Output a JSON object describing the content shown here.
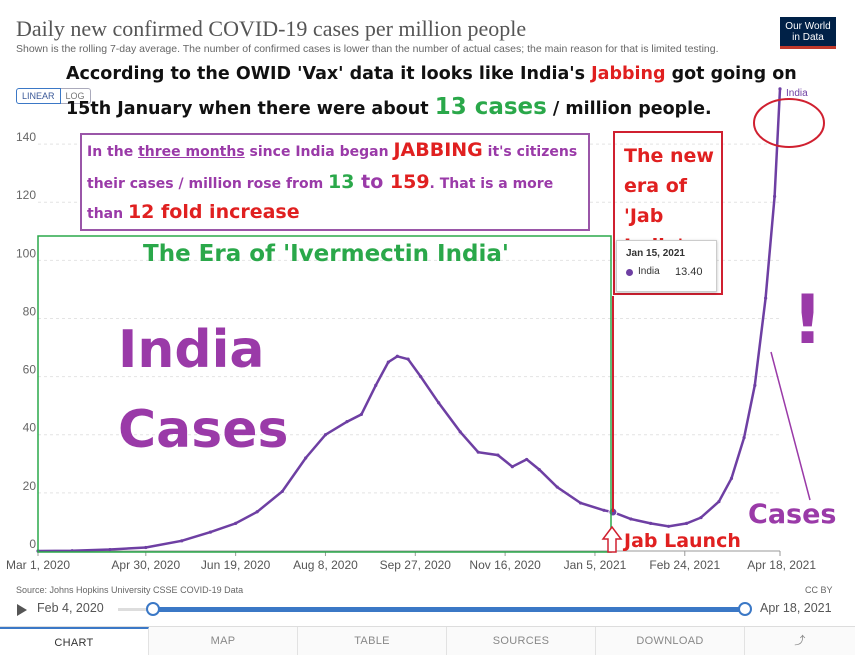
{
  "header": {
    "title": "Daily new confirmed COVID-19 cases per million people",
    "subtitle": "Shown is the rolling 7-day average. The number of confirmed cases is lower than the number of actual cases; the main reason for that is limited testing.",
    "logo_line1": "Our World",
    "logo_line2": "in Data"
  },
  "scale_toggle": {
    "linear": "LINEAR",
    "log": "LOG"
  },
  "annotations": {
    "top_line1_a": "According to the OWID 'Vax' data it looks like India's ",
    "top_line1_b": "Jabbing",
    "top_line1_c": " got going on",
    "top_line2_a": "15th January when there were about ",
    "top_line2_b": "13 cases",
    "top_line2_c": " / million people.",
    "box_l1_a": "In the ",
    "box_l1_b": "three months",
    "box_l1_c": " since India began ",
    "box_l1_d": "JABBING",
    "box_l1_e": " it's citizens",
    "box_l2_a": "their cases / million rose from ",
    "box_l2_b": "13",
    "box_l2_c": " to ",
    "box_l2_d": "159",
    "box_l2_e": ". That is a more",
    "box_l3_a": "than ",
    "box_l3_b": "12 fold increase",
    "new_era": "The new era of 'Jab India'",
    "ivermectin": "The Era of 'Ivermectin India'",
    "india_word": "India",
    "cases_word": "Cases",
    "exclamation": "!",
    "cases_small": "Cases",
    "jab_launch": "Jab Launch"
  },
  "tooltip": {
    "date": "Jan 15, 2021",
    "series": "India",
    "value": "13.40"
  },
  "source": "Source: Johns Hopkins University CSSE COVID-19 Data",
  "license": "CC BY",
  "timeline": {
    "start": "Feb 4, 2020",
    "end": "Apr 18, 2021",
    "start_fraction": 0.06,
    "end_fraction": 1.0
  },
  "tabs": [
    "CHART",
    "MAP",
    "TABLE",
    "SOURCES",
    "DOWNLOAD",
    "⤴"
  ],
  "colors": {
    "line": "#6e3fa3",
    "accent": "#3b78c6",
    "annotation_red": "#e02020",
    "annotation_green": "#2aa84a",
    "annotation_purple": "#9a3aa8"
  },
  "chart_data": {
    "type": "line",
    "title": "Daily new confirmed COVID-19 cases per million people",
    "ylim": [
      0,
      150
    ],
    "yticks": [
      0,
      20,
      40,
      60,
      80,
      100,
      120,
      140
    ],
    "xticks": [
      "Mar 1, 2020",
      "Apr 30, 2020",
      "Jun 19, 2020",
      "Aug 8, 2020",
      "Sep 27, 2020",
      "Nov 16, 2020",
      "Jan 5, 2021",
      "Feb 24, 2021",
      "Apr 18, 2021"
    ],
    "grid": true,
    "series": [
      {
        "name": "India",
        "color": "#6e3fa3",
        "points": [
          [
            "2020-03-01",
            0
          ],
          [
            "2020-03-20",
            0.1
          ],
          [
            "2020-04-10",
            0.5
          ],
          [
            "2020-04-30",
            1.2
          ],
          [
            "2020-05-20",
            3.5
          ],
          [
            "2020-06-05",
            6.5
          ],
          [
            "2020-06-19",
            9.5
          ],
          [
            "2020-07-01",
            13.5
          ],
          [
            "2020-07-15",
            20.5
          ],
          [
            "2020-07-28",
            32
          ],
          [
            "2020-08-08",
            40
          ],
          [
            "2020-08-20",
            44.5
          ],
          [
            "2020-08-28",
            47
          ],
          [
            "2020-09-05",
            57
          ],
          [
            "2020-09-12",
            65
          ],
          [
            "2020-09-17",
            67
          ],
          [
            "2020-09-23",
            66
          ],
          [
            "2020-09-30",
            60
          ],
          [
            "2020-10-10",
            51
          ],
          [
            "2020-10-22",
            41
          ],
          [
            "2020-11-01",
            34
          ],
          [
            "2020-11-12",
            33
          ],
          [
            "2020-11-20",
            29
          ],
          [
            "2020-11-28",
            31.5
          ],
          [
            "2020-12-05",
            28
          ],
          [
            "2020-12-15",
            22
          ],
          [
            "2020-12-28",
            16.5
          ],
          [
            "2021-01-10",
            14
          ],
          [
            "2021-01-15",
            13.4
          ],
          [
            "2021-01-25",
            11
          ],
          [
            "2021-02-05",
            9.5
          ],
          [
            "2021-02-15",
            8.5
          ],
          [
            "2021-02-25",
            9.5
          ],
          [
            "2021-03-05",
            11.5
          ],
          [
            "2021-03-15",
            17
          ],
          [
            "2021-03-22",
            25
          ],
          [
            "2021-03-29",
            39
          ],
          [
            "2021-04-04",
            57
          ],
          [
            "2021-04-10",
            87
          ],
          [
            "2021-04-15",
            122
          ],
          [
            "2021-04-18",
            159
          ]
        ]
      }
    ],
    "series_end_label": "India",
    "highlight_point": {
      "date": "2021-01-15",
      "value": 13.4
    }
  }
}
